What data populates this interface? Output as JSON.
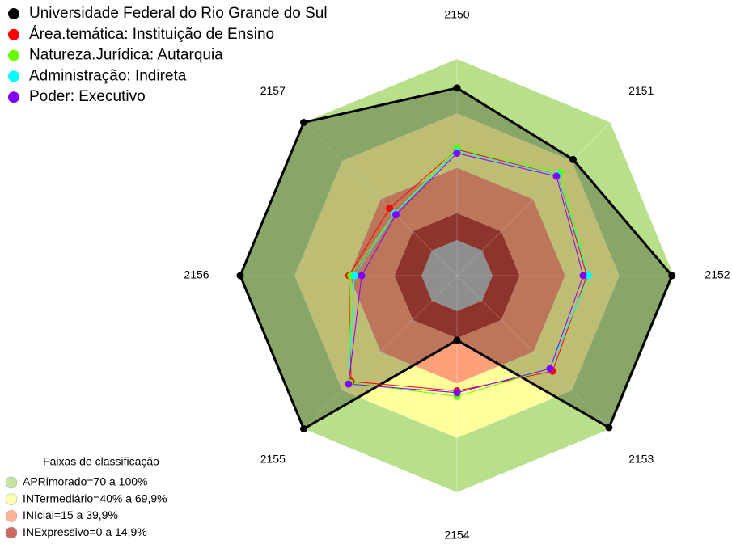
{
  "chart_data": {
    "type": "radar",
    "categories": [
      "2150",
      "2151",
      "2152",
      "2153",
      "2154",
      "2155",
      "2156",
      "2157"
    ],
    "rlim": [
      0,
      100
    ],
    "series": [
      {
        "name": "Universidade Federal do Rio Grande do Sul",
        "color": "#000000",
        "values": [
          84,
          71,
          99,
          99,
          16,
          100,
          100,
          100
        ]
      },
      {
        "name": "Área.temática: Instituição de Ensino",
        "color": "#ff0000",
        "values": [
          50,
          59,
          52,
          55,
          44,
          63,
          40,
          33
        ]
      },
      {
        "name": "Natureza.Jurídica: Autarquia",
        "color": "#66ff00",
        "values": [
          51,
          61,
          53,
          53,
          47,
          64,
          39,
          29
        ]
      },
      {
        "name": "Administração: Indireta",
        "color": "#00ffff",
        "values": [
          49,
          59,
          53,
          53,
          45,
          65,
          37,
          29
        ]
      },
      {
        "name": "Poder: Executivo",
        "color": "#8000ff",
        "values": [
          48,
          58,
          50,
          53,
          45,
          65,
          33,
          28
        ]
      }
    ],
    "bands_title": "Faixas de classificação",
    "bands": [
      {
        "label": "APRimorado=70 a 100%",
        "from": 70,
        "to": 100,
        "color": "#b8e08b"
      },
      {
        "label": "INTermediário=40% a 69,9%",
        "from": 40,
        "to": 69.9,
        "color": "#ffff9c"
      },
      {
        "label": "INIcial=15 a 39,9%",
        "from": 15,
        "to": 39.9,
        "color": "#ffa07a"
      },
      {
        "label": "INExpressivo=0 a 14,9%",
        "from": 0,
        "to": 14.9,
        "color": "#c0473a"
      }
    ]
  }
}
